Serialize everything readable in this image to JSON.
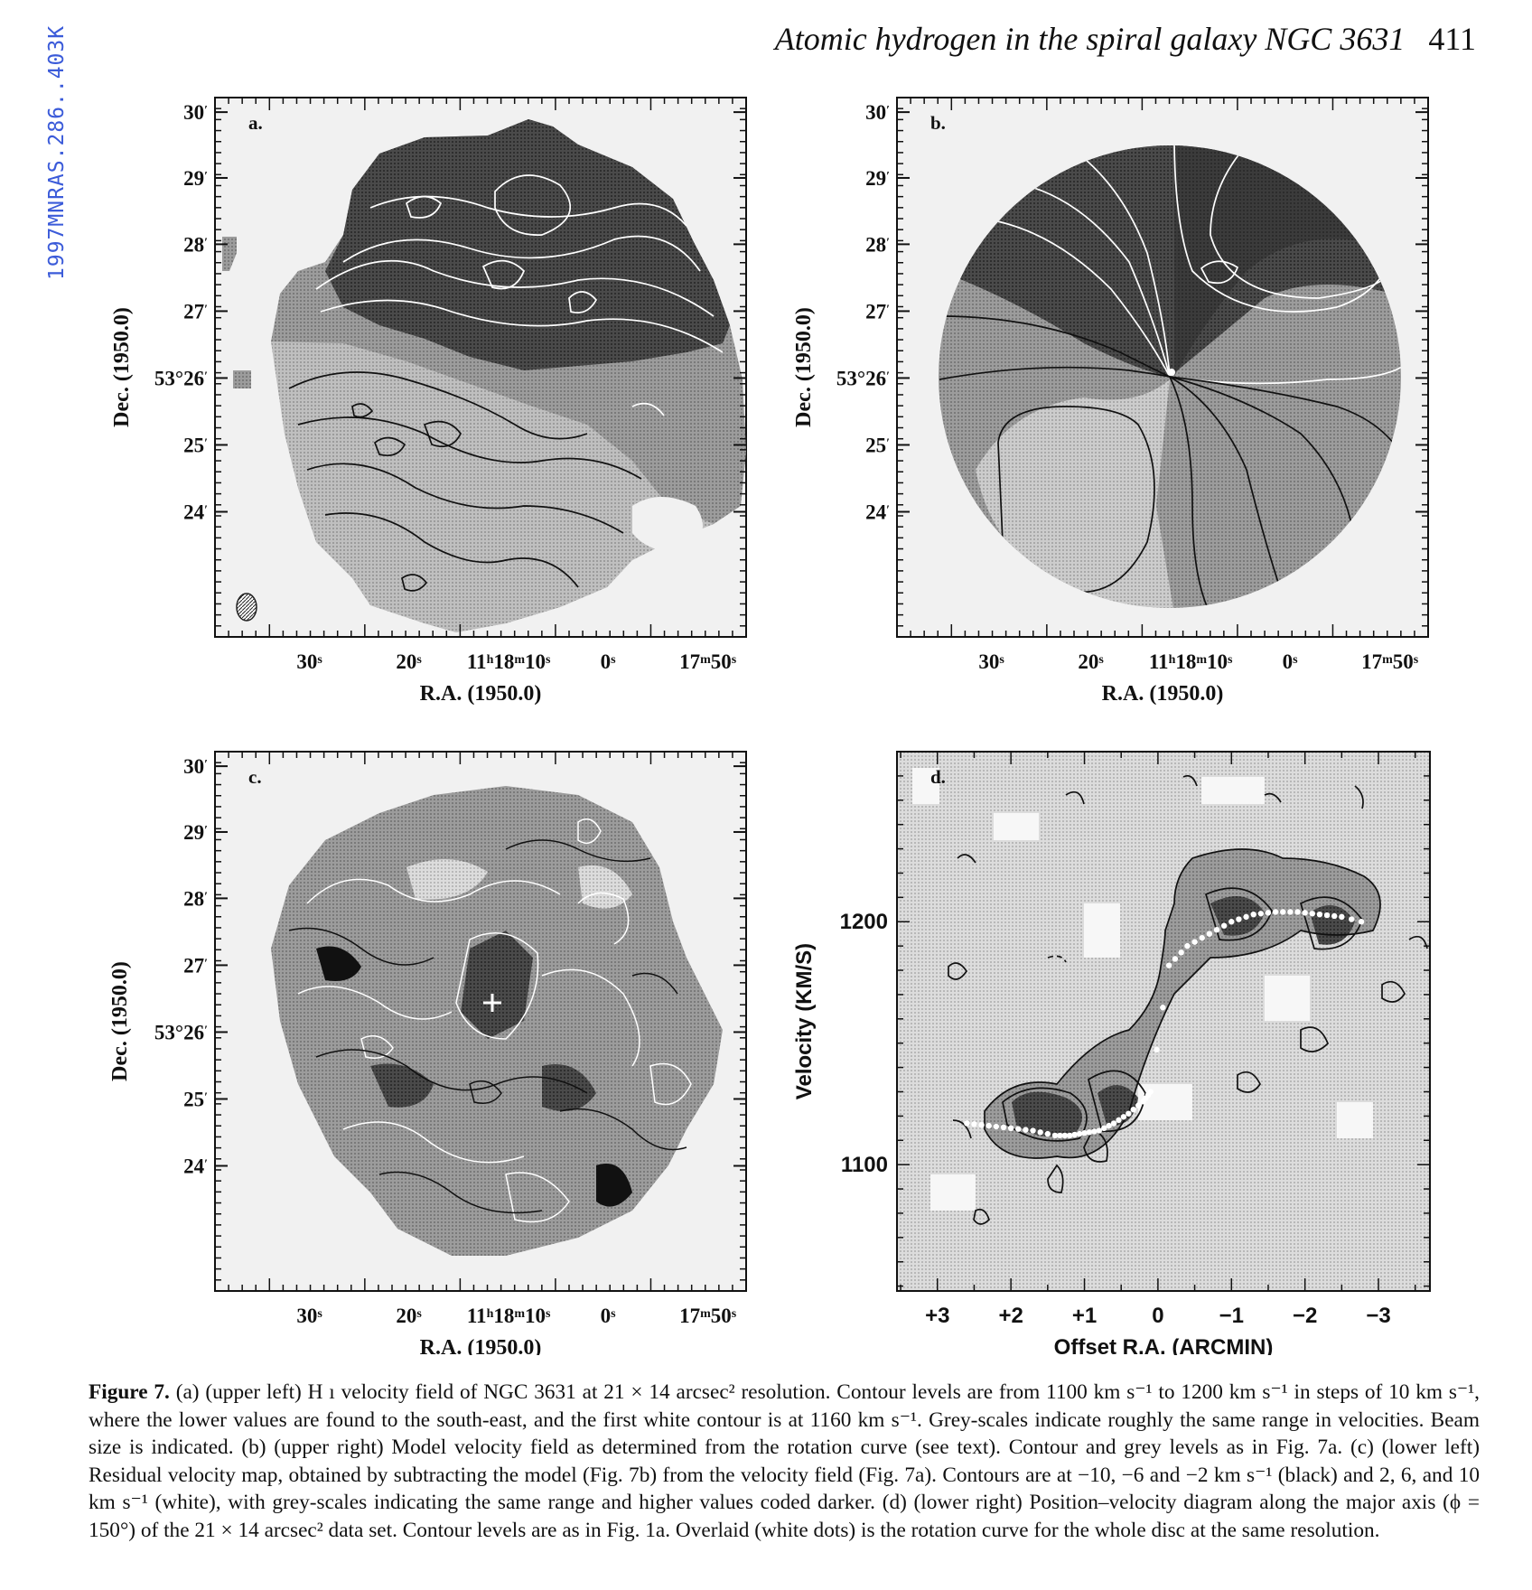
{
  "side_label": "1997MNRAS.286..403K",
  "running_head": {
    "title": "Atomic hydrogen in the spiral galaxy NGC 3631",
    "page_number": "411"
  },
  "panels": [
    {
      "id": "a",
      "letter": "a.",
      "ylabel": "Dec. (1950.0)",
      "xlabel": "R.A. (1950.0)"
    },
    {
      "id": "b",
      "letter": "b.",
      "ylabel": "Dec. (1950.0)",
      "xlabel": "R.A. (1950.0)"
    },
    {
      "id": "c",
      "letter": "c.",
      "ylabel": "Dec. (1950.0)",
      "xlabel": "R.A. (1950.0)"
    },
    {
      "id": "d",
      "letter": "d.",
      "ylabel": "Velocity (KM/S)",
      "xlabel": "Offset R.A. (ARCMIN)"
    }
  ],
  "sky_axes": {
    "dec_ticks": [
      {
        "deg": "",
        "arcmin": "30",
        "arcmin_mark": "′"
      },
      {
        "deg": "",
        "arcmin": "29",
        "arcmin_mark": "′"
      },
      {
        "deg": "",
        "arcmin": "28",
        "arcmin_mark": "′"
      },
      {
        "deg": "",
        "arcmin": "27",
        "arcmin_mark": "′"
      },
      {
        "deg": "53°",
        "arcmin": "26",
        "arcmin_mark": "′"
      },
      {
        "deg": "",
        "arcmin": "25",
        "arcmin_mark": "′"
      },
      {
        "deg": "",
        "arcmin": "24",
        "arcmin_mark": "′"
      }
    ],
    "ra_ticks": [
      {
        "parts": [
          {
            "t": "30"
          },
          {
            "t": "s",
            "sup": true
          }
        ]
      },
      {
        "parts": [
          {
            "t": "20"
          },
          {
            "t": "s",
            "sup": true
          }
        ]
      },
      {
        "parts": [
          {
            "t": "11"
          },
          {
            "t": "h",
            "sup": true
          },
          {
            "t": "18"
          },
          {
            "t": "m",
            "sup": true
          },
          {
            "t": "10"
          },
          {
            "t": "s",
            "sup": true
          }
        ]
      },
      {
        "parts": [
          {
            "t": "0"
          },
          {
            "t": "s",
            "sup": true
          }
        ]
      },
      {
        "parts": [
          {
            "t": "17"
          },
          {
            "t": "m",
            "sup": true
          },
          {
            "t": "50"
          },
          {
            "t": "s",
            "sup": true
          }
        ]
      }
    ]
  },
  "chart_data": [
    {
      "panel": "a",
      "type": "heatmap",
      "title": "",
      "xlabel": "R.A. (1950.0)",
      "ylabel": "Dec. (1950.0)",
      "x_ticks": [
        "30s",
        "20s",
        "11h18m10s",
        "0s",
        "17m50s"
      ],
      "y_ticks": [
        "30′",
        "29′",
        "28′",
        "27′",
        "53°26′",
        "25′",
        "24′"
      ],
      "contour_levels_km_s": [
        1100,
        1110,
        1120,
        1130,
        1140,
        1150,
        1160,
        1170,
        1180,
        1190,
        1200
      ]
    },
    {
      "panel": "b",
      "type": "heatmap",
      "title": "",
      "xlabel": "R.A. (1950.0)",
      "ylabel": "Dec. (1950.0)",
      "x_ticks": [
        "30s",
        "20s",
        "11h18m10s",
        "0s",
        "17m50s"
      ],
      "y_ticks": [
        "30′",
        "29′",
        "28′",
        "27′",
        "53°26′",
        "25′",
        "24′"
      ],
      "contour_levels_km_s": [
        1100,
        1110,
        1120,
        1130,
        1140,
        1150,
        1160,
        1170,
        1180,
        1190,
        1200
      ]
    },
    {
      "panel": "c",
      "type": "heatmap",
      "title": "",
      "xlabel": "R.A. (1950.0)",
      "ylabel": "Dec. (1950.0)",
      "x_ticks": [
        "30s",
        "20s",
        "11h18m10s",
        "0s",
        "17m50s"
      ],
      "y_ticks": [
        "30′",
        "29′",
        "28′",
        "27′",
        "53°26′",
        "25′",
        "24′"
      ],
      "contour_levels_km_s": [
        -10,
        -6,
        -2,
        2,
        6,
        10
      ]
    },
    {
      "panel": "d",
      "type": "line",
      "title": "",
      "xlabel": "Offset R.A. (ARCMIN)",
      "ylabel": "Velocity (KM/S)",
      "x_ticks": [
        3,
        2,
        1,
        0,
        -1,
        -2,
        -3
      ],
      "x_tick_labels": [
        "+3",
        "+2",
        "+1",
        "0",
        "−1",
        "−2",
        "−3"
      ],
      "y_ticks": [
        1100,
        1200
      ],
      "xlim": [
        3.55,
        -3.7
      ],
      "ylim": [
        1048,
        1270
      ],
      "series": [
        {
          "x": [
            2.6,
            2.3,
            2.0,
            1.7,
            1.4,
            1.2,
            1.0,
            0.8,
            0.6,
            0.4,
            0.2,
            0.1,
            -0.15,
            -0.4,
            -0.7,
            -1.0,
            -1.3,
            -1.6,
            -1.9,
            -2.2,
            -2.5,
            -2.9
          ],
          "y": [
            1117,
            1116,
            1115,
            1114,
            1112,
            1112,
            1113,
            1114,
            1117,
            1121,
            1126,
            1130,
            1182,
            1190,
            1195,
            1200,
            1203,
            1204,
            1204,
            1203,
            1202,
            1199
          ]
        }
      ]
    }
  ],
  "caption": {
    "lead": "Figure 7.",
    "lines": [
      "(a) (upper left) H ı velocity field of NGC 3631 at 21 × 14 arcsec² resolution. Contour levels are from 1100 km s⁻¹ to 1200 km s⁻¹",
      "in steps of 10 km s⁻¹, where the lower values are found to the south-east, and the first white contour is at 1160 km s⁻¹. Grey-scales indicate",
      "roughly the same range in velocities. Beam size is indicated. (b) (upper right) Model velocity field as determined from the rotation curve (see",
      "text). Contour and grey levels as in Fig. 7a. (c) (lower left) Residual velocity map, obtained by subtracting the model (Fig. 7b) from the",
      "velocity field (Fig. 7a). Contours are at −10, −6 and −2 km s⁻¹ (black) and 2, 6, and 10 km s⁻¹ (white), with grey-scales indicating the same",
      "range and higher values coded darker. (d) (lower right) Position–velocity diagram along the major axis (ϕ = 150°) of the 21 × 14 arcsec² data",
      "set. Contour levels are as in Fig. 1a. Overlaid (white dots) is the rotation curve for the whole disc at the same resolution."
    ]
  },
  "colors": {
    "ink": "#111111",
    "paper": "#ffffff",
    "side_label": "#3b5bd9",
    "plot_bg": "#f1f1f1"
  }
}
